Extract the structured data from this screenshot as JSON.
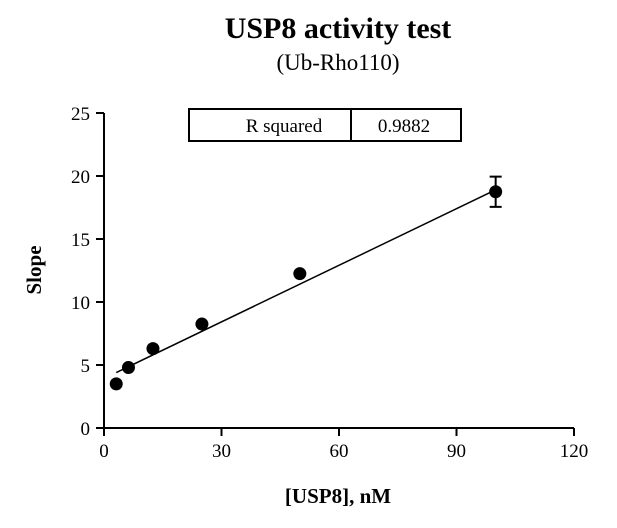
{
  "chart_data": {
    "type": "scatter",
    "title": "USP8 activity test",
    "subtitle": "(Ub-Rho110)",
    "xlabel": "[USP8], nM",
    "ylabel": "Slope",
    "xlim": [
      0,
      120
    ],
    "ylim": [
      0,
      25
    ],
    "x_ticks": [
      0,
      30,
      60,
      90,
      120
    ],
    "y_ticks": [
      0,
      5,
      10,
      15,
      20,
      25
    ],
    "grid": false,
    "points": [
      {
        "x": 3.125,
        "y": 3.5,
        "err": 0
      },
      {
        "x": 6.25,
        "y": 4.8,
        "err": 0
      },
      {
        "x": 12.5,
        "y": 6.3,
        "err": 0
      },
      {
        "x": 25,
        "y": 8.25,
        "err": 0
      },
      {
        "x": 50,
        "y": 12.25,
        "err": 0
      },
      {
        "x": 100,
        "y": 18.75,
        "err": 1.2
      }
    ],
    "fit_line": {
      "x": [
        3.125,
        100
      ],
      "y": [
        4.4,
        18.9
      ]
    },
    "stats_box": {
      "label": "R squared",
      "value": "0.9882"
    }
  }
}
